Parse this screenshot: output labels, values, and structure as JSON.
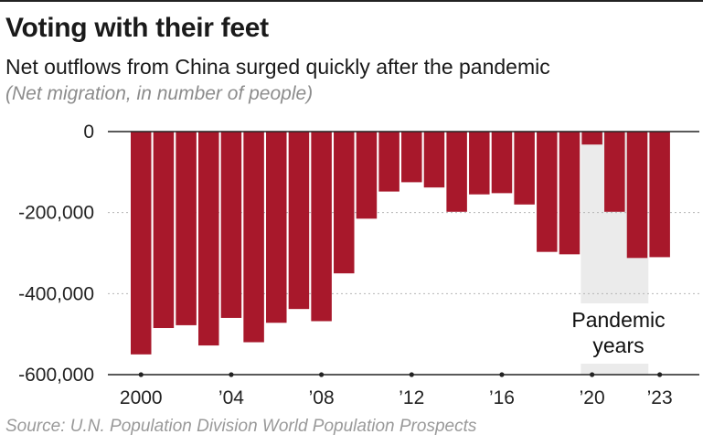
{
  "header": {
    "title": "Voting with their feet",
    "subtitle": "Net outflows from China surged quickly after the pandemic",
    "unit_note": "(Net migration, in number of people)"
  },
  "footer": {
    "source": "Source: U.N. Population Division World Population Prospects"
  },
  "colors": {
    "bar": "#a8182b",
    "shade": "#ebebeb",
    "axis": "#222222",
    "grid": "#b5b5b5"
  },
  "chart_data": {
    "type": "bar",
    "title": "Voting with their feet",
    "subtitle": "Net outflows from China surged quickly after the pandemic",
    "ylabel": "(Net migration, in number of people)",
    "xlabel": "",
    "categories": [
      2000,
      2001,
      2002,
      2003,
      2004,
      2005,
      2006,
      2007,
      2008,
      2009,
      2010,
      2011,
      2012,
      2013,
      2014,
      2015,
      2016,
      2017,
      2018,
      2019,
      2020,
      2021,
      2022,
      2023
    ],
    "values": [
      -550000,
      -485000,
      -478000,
      -528000,
      -460000,
      -520000,
      -472000,
      -438000,
      -468000,
      -350000,
      -215000,
      -148000,
      -125000,
      -138000,
      -198000,
      -155000,
      -152000,
      -180000,
      -297000,
      -303000,
      -32000,
      -198000,
      -312000,
      -310000
    ],
    "ylim": [
      -600000,
      0
    ],
    "yticks": [
      0,
      -200000,
      -400000,
      -600000
    ],
    "ytick_labels": [
      "0",
      "-200,000",
      "-400,000",
      "-600,000"
    ],
    "xticks": [
      2000,
      2004,
      2008,
      2012,
      2016,
      2020,
      2023
    ],
    "xtick_labels": [
      "2000",
      "’04",
      "’08",
      "’12",
      "’16",
      "’20",
      "’23"
    ],
    "grid": true,
    "highlight": {
      "label_lines": [
        "Pandemic",
        "years"
      ],
      "from": 2020,
      "to": 2022
    }
  }
}
